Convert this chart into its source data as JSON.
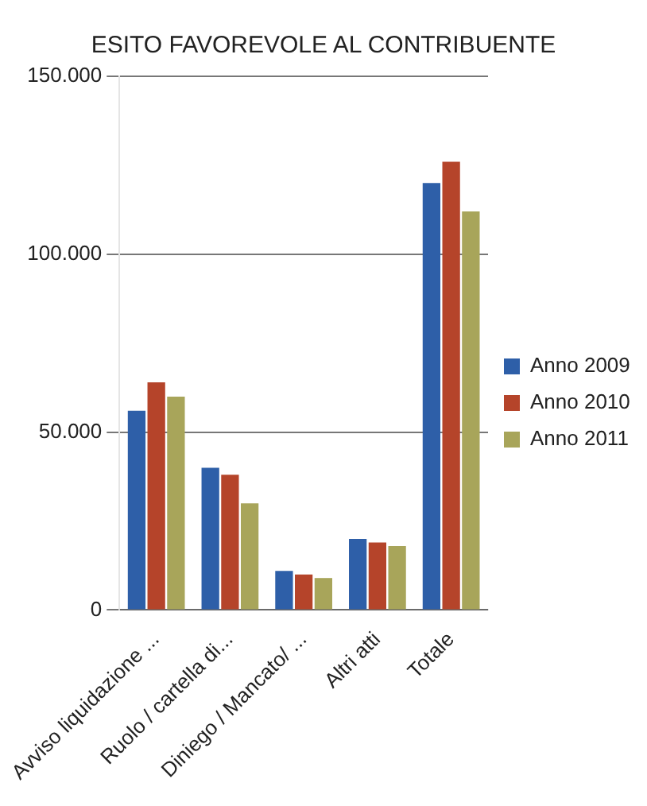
{
  "chart_data": {
    "type": "bar",
    "title": "ESITO FAVOREVOLE AL CONTRIBUENTE",
    "categories": [
      "Avviso liquidazione ...",
      "Ruolo / cartella di...",
      "Diniego / Mancato/ ...",
      "Altri atti",
      "Totale"
    ],
    "series": [
      {
        "name": "Anno 2009",
        "color": "#2e5fa8",
        "values": [
          56000,
          40000,
          11000,
          20000,
          120000
        ]
      },
      {
        "name": "Anno 2010",
        "color": "#b5442a",
        "values": [
          64000,
          38000,
          10000,
          19000,
          126000
        ]
      },
      {
        "name": "Anno 2011",
        "color": "#a8a55a",
        "values": [
          60000,
          30000,
          9000,
          18000,
          112000
        ]
      }
    ],
    "ylim": [
      0,
      150000
    ],
    "yticks": [
      {
        "value": 0,
        "label": "0"
      },
      {
        "value": 50000,
        "label": "50.000"
      },
      {
        "value": 100000,
        "label": "100.000"
      },
      {
        "value": 150000,
        "label": "150.000"
      }
    ],
    "grid": "y",
    "legend": "right"
  }
}
